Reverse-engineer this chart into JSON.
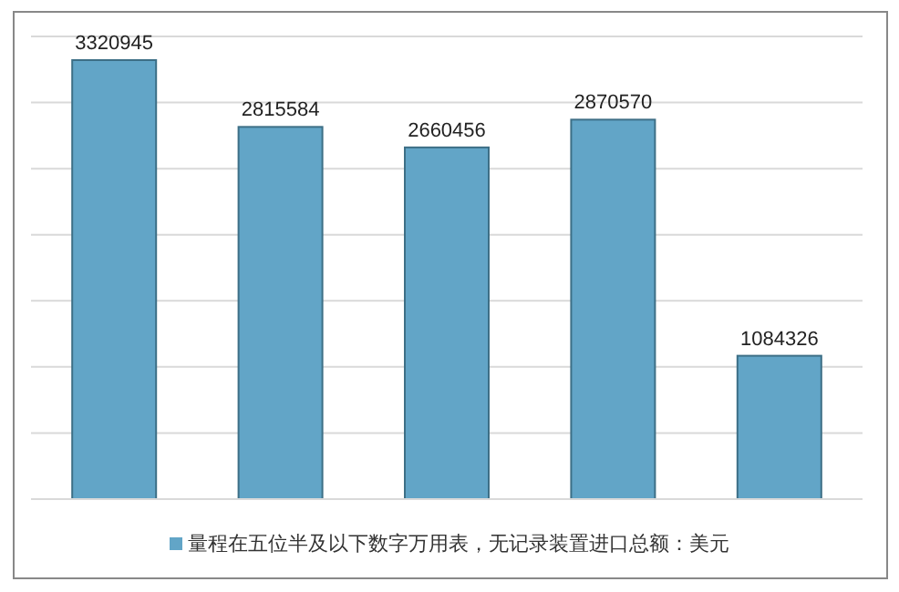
{
  "chart_data": {
    "type": "bar",
    "categories": [
      null,
      null,
      null,
      null,
      null
    ],
    "series": [
      {
        "name": "量程在五位半及以下数字万用表，无记录装置进口总额：美元",
        "color": "#62a5c7",
        "values": [
          3320945,
          2815584,
          2660456,
          2870570,
          1084326
        ]
      }
    ],
    "data_labels": true,
    "ylim": [
      0,
      3500000
    ],
    "yticks": [
      {
        "value": 0,
        "label": null
      },
      {
        "value": 500000,
        "label": null
      },
      {
        "value": 1000000,
        "label": null
      },
      {
        "value": 1500000,
        "label": null
      },
      {
        "value": 2000000,
        "label": null
      },
      {
        "value": 2500000,
        "label": null
      },
      {
        "value": 3000000,
        "label": null
      },
      {
        "value": 3500000,
        "label": null
      }
    ],
    "grid": "y",
    "legend": "bottom"
  }
}
